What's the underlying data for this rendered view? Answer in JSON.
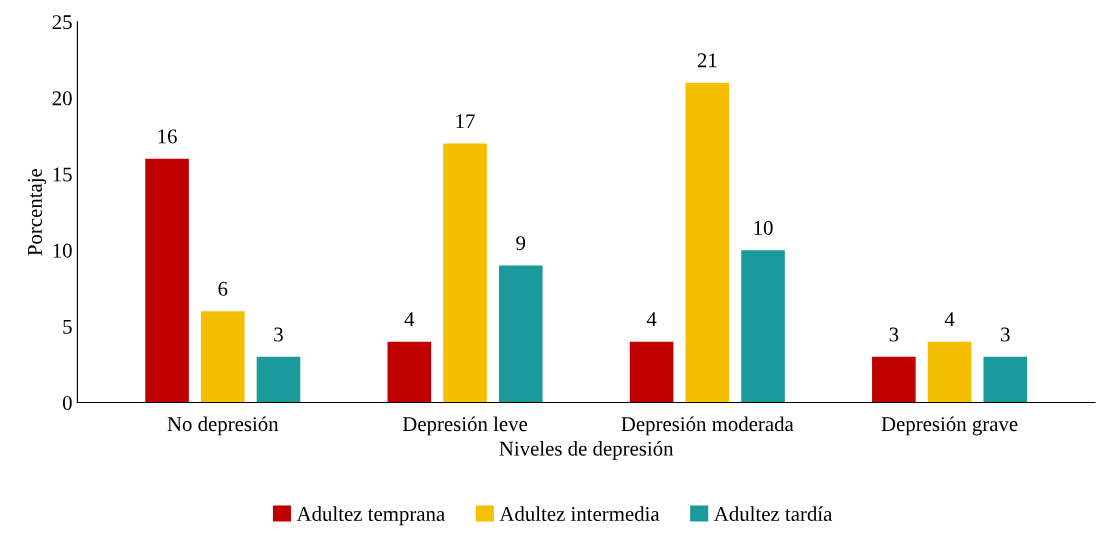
{
  "chart_data": {
    "type": "bar",
    "xlabel": "Niveles de depresión",
    "ylabel": "Porcentaje",
    "categories": [
      "No depresión",
      "Depresión leve",
      "Depresión moderada",
      "Depresión grave"
    ],
    "series": [
      {
        "name": "Adultez temprana",
        "color": "#c00000",
        "values": [
          16,
          4,
          4,
          3
        ]
      },
      {
        "name": "Adultez intermedia",
        "color": "#f5bf00",
        "values": [
          6,
          17,
          21,
          4
        ]
      },
      {
        "name": "Adultez tardía",
        "color": "#1a9a9a",
        "values": [
          3,
          9,
          10,
          3
        ]
      }
    ],
    "ylim": [
      0,
      25
    ],
    "yticks": [
      0,
      5,
      10,
      15,
      20,
      25
    ],
    "grid": false,
    "legend": "bottom",
    "data_labels": true
  }
}
